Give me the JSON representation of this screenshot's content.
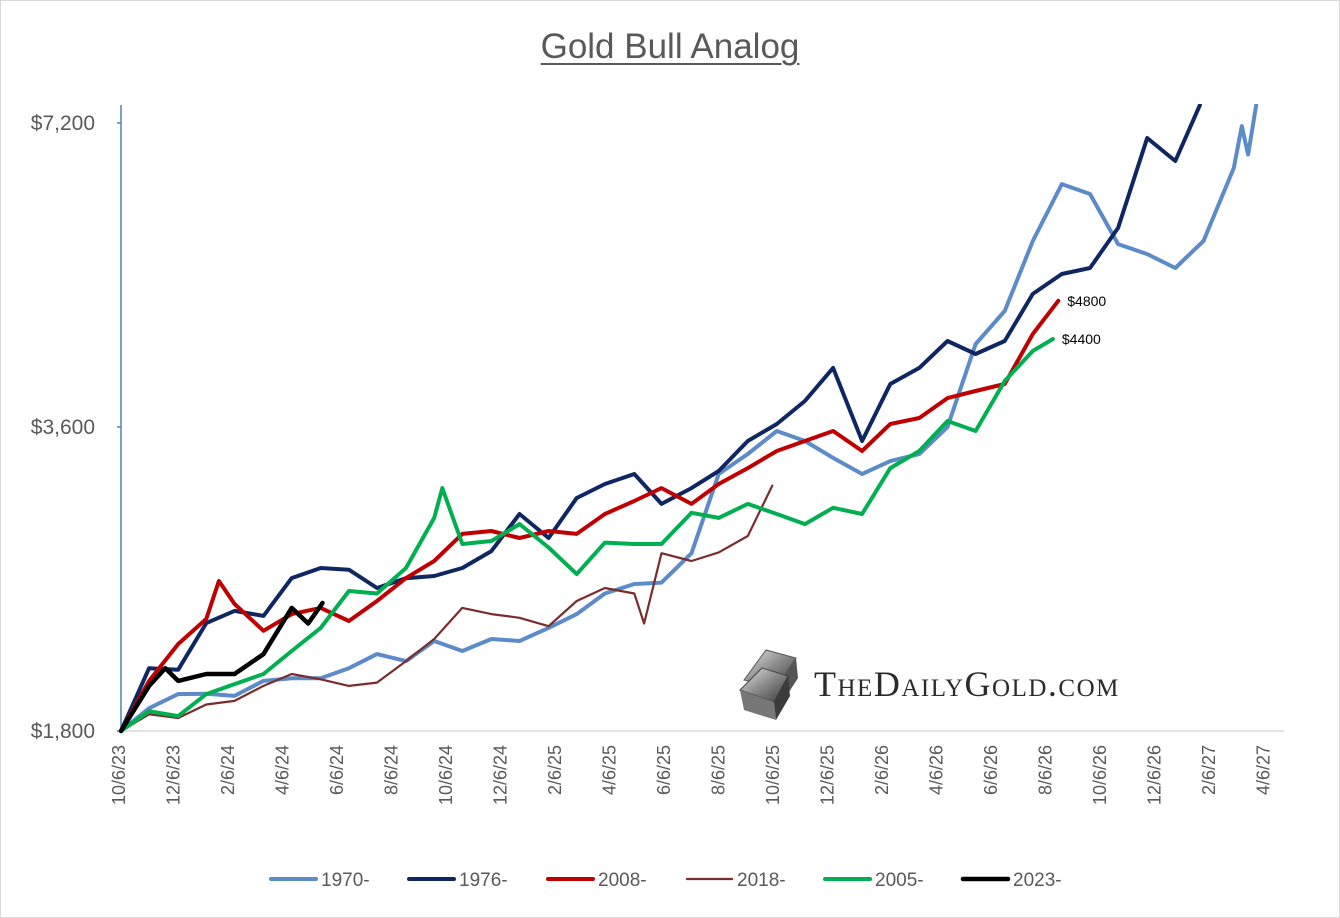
{
  "chart_data": {
    "type": "line",
    "title": "Gold Bull Analog",
    "xlabel": "",
    "ylabel": "",
    "y_scale": "log",
    "ylim": [
      1800,
      7500
    ],
    "xlim": [
      "10/6/23",
      "4/27/27"
    ],
    "grid": false,
    "legend_position": "bottom",
    "y_ticks": [
      "$1,800",
      "$3,600",
      "$7,200"
    ],
    "y_tick_values": [
      1800,
      3600,
      7200
    ],
    "x_ticks": [
      "10/6/23",
      "12/6/23",
      "2/6/24",
      "4/6/24",
      "6/6/24",
      "8/6/24",
      "10/6/24",
      "12/6/24",
      "2/6/25",
      "4/6/25",
      "6/6/25",
      "8/6/25",
      "10/6/25",
      "12/6/25",
      "2/6/26",
      "4/6/26",
      "6/6/26",
      "8/6/26",
      "10/6/26",
      "12/6/26",
      "2/6/27",
      "4/6/27"
    ],
    "series": [
      {
        "name": "1970-",
        "color": "#5B8BC9",
        "width": 4,
        "points": [
          [
            "10/6/23",
            1800
          ],
          [
            "11/7/23",
            1896
          ],
          [
            "12/9/23",
            1958
          ],
          [
            "1/10/24",
            1960
          ],
          [
            "2/11/24",
            1950
          ],
          [
            "3/13/24",
            2018
          ],
          [
            "4/14/24",
            2030
          ],
          [
            "5/16/24",
            2030
          ],
          [
            "6/17/24",
            2077
          ],
          [
            "7/18/24",
            2145
          ],
          [
            "8/20/24",
            2111
          ],
          [
            "9/21/24",
            2210
          ],
          [
            "10/22/24",
            2160
          ],
          [
            "11/24/24",
            2220
          ],
          [
            "12/25/24",
            2210
          ],
          [
            "1/27/25",
            2277
          ],
          [
            "2/28/25",
            2350
          ],
          [
            "3/29/25",
            2463
          ],
          [
            "5/1/25",
            2517
          ],
          [
            "6/1/25",
            2525
          ],
          [
            "7/4/25",
            2700
          ],
          [
            "8/4/25",
            3234
          ],
          [
            "9/6/25",
            3385
          ],
          [
            "10/8/25",
            3567
          ],
          [
            "11/9/25",
            3487
          ],
          [
            "12/10/25",
            3355
          ],
          [
            "1/12/26",
            3234
          ],
          [
            "2/13/26",
            3331
          ],
          [
            "3/15/26",
            3385
          ],
          [
            "4/16/26",
            3600
          ],
          [
            "5/17/26",
            4349
          ],
          [
            "6/19/26",
            4690
          ],
          [
            "7/20/26",
            5501
          ],
          [
            "8/22/26",
            6264
          ],
          [
            "9/23/26",
            6124
          ],
          [
            "10/24/26",
            5463
          ],
          [
            "11/26/26",
            5340
          ],
          [
            "12/27/26",
            5173
          ],
          [
            "1/28/27",
            5501
          ],
          [
            "3/1/27",
            6498
          ],
          [
            "3/10/27",
            7150
          ],
          [
            "3/17/27",
            6700
          ],
          [
            "3/26/27",
            7500
          ]
        ]
      },
      {
        "name": "1976-",
        "color": "#0E2762",
        "width": 4,
        "points": [
          [
            "10/6/23",
            1800
          ],
          [
            "11/7/23",
            2077
          ],
          [
            "12/9/23",
            2070
          ],
          [
            "1/10/24",
            2302
          ],
          [
            "2/11/24",
            2367
          ],
          [
            "3/13/24",
            2340
          ],
          [
            "4/14/24",
            2551
          ],
          [
            "5/16/24",
            2610
          ],
          [
            "6/17/24",
            2600
          ],
          [
            "7/18/24",
            2494
          ],
          [
            "8/20/24",
            2550
          ],
          [
            "9/21/24",
            2563
          ],
          [
            "10/22/24",
            2610
          ],
          [
            "11/24/24",
            2713
          ],
          [
            "12/25/24",
            2952
          ],
          [
            "1/27/25",
            2795
          ],
          [
            "2/28/25",
            3062
          ],
          [
            "3/29/25",
            3161
          ],
          [
            "5/1/25",
            3234
          ],
          [
            "6/1/25",
            3021
          ],
          [
            "7/4/25",
            3132
          ],
          [
            "8/4/25",
            3256
          ],
          [
            "9/6/25",
            3487
          ],
          [
            "10/8/25",
            3625
          ],
          [
            "11/9/25",
            3820
          ],
          [
            "12/10/25",
            4119
          ],
          [
            "1/12/26",
            3487
          ],
          [
            "2/13/26",
            3971
          ],
          [
            "3/15/26",
            4119
          ],
          [
            "4/16/26",
            4380
          ],
          [
            "5/17/26",
            4252
          ],
          [
            "6/19/26",
            4380
          ],
          [
            "7/20/26",
            4876
          ],
          [
            "8/22/26",
            5103
          ],
          [
            "9/23/26",
            5173
          ],
          [
            "10/24/26",
            5668
          ],
          [
            "11/26/26",
            6958
          ],
          [
            "12/27/26",
            6602
          ],
          [
            "1/24/27",
            7500
          ]
        ]
      },
      {
        "name": "2008-",
        "color": "#C00000",
        "width": 4,
        "points": [
          [
            "10/6/23",
            1800
          ],
          [
            "11/7/23",
            2018
          ],
          [
            "12/9/23",
            2195
          ],
          [
            "1/10/24",
            2324
          ],
          [
            "1/24/24",
            2534
          ],
          [
            "2/11/24",
            2405
          ],
          [
            "3/13/24",
            2262
          ],
          [
            "4/14/24",
            2350
          ],
          [
            "5/16/24",
            2383
          ],
          [
            "6/17/24",
            2313
          ],
          [
            "7/18/24",
            2421
          ],
          [
            "8/20/24",
            2551
          ],
          [
            "9/21/24",
            2652
          ],
          [
            "10/22/24",
            2821
          ],
          [
            "11/24/24",
            2840
          ],
          [
            "12/25/24",
            2795
          ],
          [
            "1/27/25",
            2840
          ],
          [
            "2/28/25",
            2821
          ],
          [
            "3/29/25",
            2952
          ],
          [
            "5/1/25",
            3041
          ],
          [
            "6/1/25",
            3132
          ],
          [
            "7/4/25",
            3021
          ],
          [
            "8/4/25",
            3161
          ],
          [
            "9/6/25",
            3278
          ],
          [
            "10/8/25",
            3408
          ],
          [
            "11/9/25",
            3487
          ],
          [
            "12/10/25",
            3567
          ],
          [
            "1/12/26",
            3408
          ],
          [
            "2/13/26",
            3625
          ],
          [
            "3/15/26",
            3675
          ],
          [
            "4/16/26",
            3845
          ],
          [
            "5/17/26",
            3908
          ],
          [
            "6/19/26",
            3971
          ],
          [
            "7/20/26",
            4450
          ],
          [
            "8/18/26",
            4800
          ]
        ]
      },
      {
        "name": "2018-",
        "color": "#7B2C2C",
        "width": 2.2,
        "points": [
          [
            "10/6/23",
            1800
          ],
          [
            "11/7/23",
            1870
          ],
          [
            "12/9/23",
            1854
          ],
          [
            "1/10/24",
            1912
          ],
          [
            "2/11/24",
            1928
          ],
          [
            "3/13/24",
            1995
          ],
          [
            "4/14/24",
            2050
          ],
          [
            "5/16/24",
            2025
          ],
          [
            "6/17/24",
            1995
          ],
          [
            "7/18/24",
            2010
          ],
          [
            "8/20/24",
            2111
          ],
          [
            "9/21/24",
            2220
          ],
          [
            "10/22/24",
            2383
          ],
          [
            "11/24/24",
            2350
          ],
          [
            "12/25/24",
            2330
          ],
          [
            "1/27/25",
            2286
          ],
          [
            "2/28/25",
            2421
          ],
          [
            "3/29/25",
            2494
          ],
          [
            "5/1/25",
            2463
          ],
          [
            "5/12/25",
            2300
          ],
          [
            "6/1/25",
            2700
          ],
          [
            "7/4/25",
            2652
          ],
          [
            "8/4/25",
            2705
          ],
          [
            "9/6/25",
            2808
          ],
          [
            "10/3/25",
            3150
          ]
        ]
      },
      {
        "name": "2005-",
        "color": "#00B050",
        "width": 4,
        "points": [
          [
            "10/6/23",
            1800
          ],
          [
            "11/7/23",
            1883
          ],
          [
            "12/9/23",
            1862
          ],
          [
            "1/10/24",
            1958
          ],
          [
            "2/11/24",
            2003
          ],
          [
            "3/13/24",
            2050
          ],
          [
            "4/14/24",
            2160
          ],
          [
            "5/16/24",
            2277
          ],
          [
            "6/17/24",
            2477
          ],
          [
            "7/18/24",
            2463
          ],
          [
            "8/20/24",
            2610
          ],
          [
            "9/21/24",
            2926
          ],
          [
            "9/30/24",
            3132
          ],
          [
            "10/22/24",
            2757
          ],
          [
            "11/24/24",
            2776
          ],
          [
            "12/25/24",
            2885
          ],
          [
            "1/27/25",
            2735
          ],
          [
            "2/28/25",
            2574
          ],
          [
            "3/29/25",
            2766
          ],
          [
            "5/1/25",
            2757
          ],
          [
            "6/1/25",
            2757
          ],
          [
            "7/4/25",
            2960
          ],
          [
            "8/4/25",
            2926
          ],
          [
            "9/6/25",
            3021
          ],
          [
            "10/8/25",
            2952
          ],
          [
            "11/9/25",
            2885
          ],
          [
            "12/10/25",
            2994
          ],
          [
            "1/12/26",
            2952
          ],
          [
            "2/13/26",
            3278
          ],
          [
            "3/15/26",
            3408
          ],
          [
            "4/16/26",
            3650
          ],
          [
            "5/17/26",
            3567
          ],
          [
            "6/19/26",
            3998
          ],
          [
            "7/20/26",
            4281
          ],
          [
            "8/12/26",
            4400
          ]
        ]
      },
      {
        "name": "2023-",
        "color": "#000000",
        "width": 4.5,
        "points": [
          [
            "10/6/23",
            1800
          ],
          [
            "11/7/23",
            1995
          ],
          [
            "11/25/23",
            2077
          ],
          [
            "12/9/23",
            2018
          ],
          [
            "1/10/24",
            2050
          ],
          [
            "2/11/24",
            2050
          ],
          [
            "3/13/24",
            2145
          ],
          [
            "4/14/24",
            2383
          ],
          [
            "5/2/24",
            2300
          ],
          [
            "5/18/24",
            2410
          ]
        ]
      }
    ],
    "annotations": [
      {
        "text": "$4800",
        "series": "2008-"
      },
      {
        "text": "$4400",
        "series": "2005-"
      }
    ]
  },
  "logo": {
    "text": "TheDailyGold.com"
  }
}
